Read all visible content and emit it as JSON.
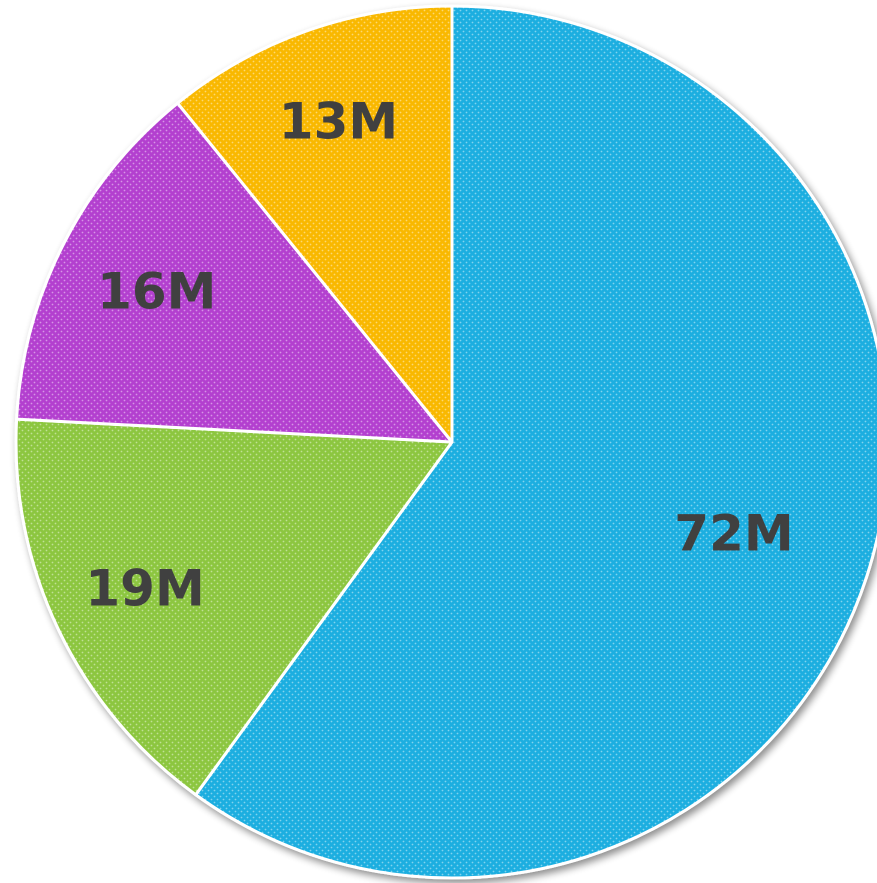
{
  "chart_data": {
    "type": "pie",
    "title": "",
    "slices": [
      {
        "value": 72,
        "label": "72M",
        "color": "#1aaee0"
      },
      {
        "value": 19,
        "label": "19M",
        "color": "#8cc63f"
      },
      {
        "value": 16,
        "label": "16M",
        "color": "#b33fcf"
      },
      {
        "value": 13,
        "label": "13M",
        "color": "#f9b800"
      }
    ],
    "start_angle_deg": 0,
    "direction": "clockwise",
    "legend": "none",
    "fill_pattern": "dotted"
  }
}
